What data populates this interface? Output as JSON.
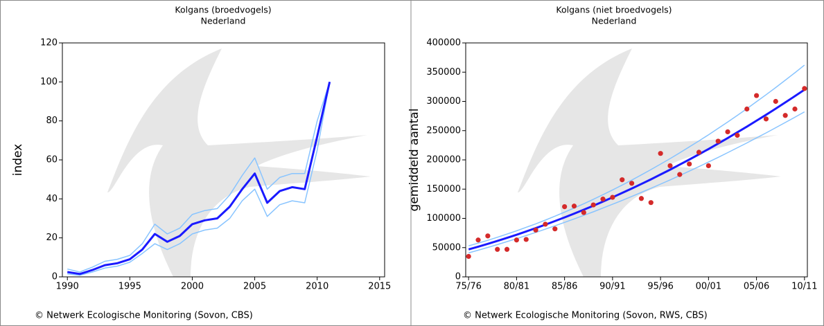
{
  "chart_data": [
    {
      "type": "line",
      "title": "Kolgans (broedvogels)",
      "subtitle": "Nederland",
      "y_label": "index",
      "source": "©  Netwerk Ecologische Monitoring (Sovon, CBS)",
      "x": [
        1990,
        1991,
        1992,
        1993,
        1994,
        1995,
        1996,
        1997,
        1998,
        1999,
        2000,
        2001,
        2002,
        2003,
        2004,
        2005,
        2006,
        2007,
        2008,
        2009,
        2010,
        2011
      ],
      "xlim": [
        1989.6,
        2015.4
      ],
      "xticks": [
        1990,
        1995,
        2000,
        2005,
        2010,
        2015
      ],
      "ylim": [
        0,
        120
      ],
      "yticks": [
        0,
        20,
        40,
        60,
        80,
        100,
        120
      ],
      "series": [
        {
          "color": "#88c4ff",
          "width": 1.5,
          "values": [
            4,
            2.5,
            5,
            8,
            9,
            11,
            17,
            27,
            22,
            25,
            32,
            34,
            35,
            42,
            52,
            61,
            45,
            51,
            53,
            53,
            80,
            100
          ]
        },
        {
          "color": "#88c4ff",
          "width": 1.5,
          "values": [
            1.5,
            0.8,
            2.5,
            4.5,
            5.5,
            7.5,
            12,
            17,
            14,
            17,
            22,
            24,
            25,
            30,
            39,
            45,
            31,
            37,
            39,
            38,
            65,
            100
          ]
        },
        {
          "color": "#1a1aff",
          "width": 3,
          "values": [
            2.5,
            1.5,
            3.5,
            6,
            7,
            9,
            14,
            22,
            18,
            21,
            27,
            29,
            30,
            36,
            45,
            53,
            38,
            44,
            46,
            45,
            72,
            100
          ]
        }
      ]
    },
    {
      "type": "line",
      "title": "Kolgans (niet broedvogels)",
      "subtitle": "Nederland",
      "y_label": "gemiddeld aantal",
      "source": "©  Netwerk Ecologische Monitoring (Sovon, RWS, CBS)",
      "categories": [
        "75/76",
        null,
        null,
        null,
        null,
        "80/81",
        null,
        null,
        null,
        null,
        "85/86",
        null,
        null,
        null,
        null,
        "90/91",
        null,
        null,
        null,
        null,
        "95/96",
        null,
        null,
        null,
        null,
        "00/01",
        null,
        null,
        null,
        null,
        "05/06",
        null,
        null,
        null,
        null,
        "10/11"
      ],
      "ylim": [
        0,
        400000
      ],
      "yticks": [
        0,
        50000,
        100000,
        150000,
        200000,
        250000,
        300000,
        350000,
        400000
      ],
      "series": [
        {
          "color": "#88c4ff",
          "width": 1.5,
          "mode": "line",
          "values": [
            53000,
            57600,
            62500,
            67700,
            73100,
            78700,
            84700,
            90700,
            97100,
            103800,
            110600,
            117800,
            125000,
            132700,
            140500,
            148600,
            156900,
            165500,
            174300,
            183400,
            192800,
            202300,
            212100,
            222200,
            232400,
            243000,
            253800,
            264800,
            276100,
            287600,
            299500,
            311500,
            323700,
            336200,
            349000,
            362000
          ]
        },
        {
          "color": "#88c4ff",
          "width": 1.5,
          "mode": "line",
          "values": [
            41000,
            45600,
            50300,
            55200,
            60200,
            65300,
            70700,
            76000,
            81500,
            87300,
            93100,
            99100,
            105100,
            111300,
            117600,
            124100,
            130700,
            137500,
            144400,
            151400,
            158600,
            165800,
            173300,
            180800,
            188500,
            196300,
            204300,
            212400,
            220700,
            229000,
            237600,
            246200,
            255000,
            263900,
            272900,
            282100
          ]
        },
        {
          "color": "#1a1aff",
          "width": 3,
          "mode": "line",
          "values": [
            47000,
            51600,
            56400,
            61400,
            66600,
            72000,
            77600,
            83300,
            89200,
            95400,
            101700,
            108200,
            114800,
            121700,
            128700,
            136000,
            143400,
            151000,
            158800,
            166800,
            175000,
            183300,
            191900,
            200600,
            209500,
            218600,
            227900,
            237400,
            247100,
            256900,
            267000,
            277200,
            287600,
            298200,
            309000,
            320000
          ]
        },
        {
          "color": "#d42a2a",
          "mode": "markers",
          "values": [
            35000,
            63000,
            70000,
            47000,
            47000,
            63000,
            64000,
            80000,
            90000,
            82000,
            120000,
            121000,
            110000,
            123000,
            133000,
            136000,
            166000,
            160000,
            134000,
            127000,
            211000,
            190000,
            175000,
            193000,
            213000,
            190000,
            232000,
            248000,
            242000,
            287000,
            310000,
            270000,
            300000,
            276000,
            287000,
            322000
          ]
        }
      ]
    }
  ]
}
